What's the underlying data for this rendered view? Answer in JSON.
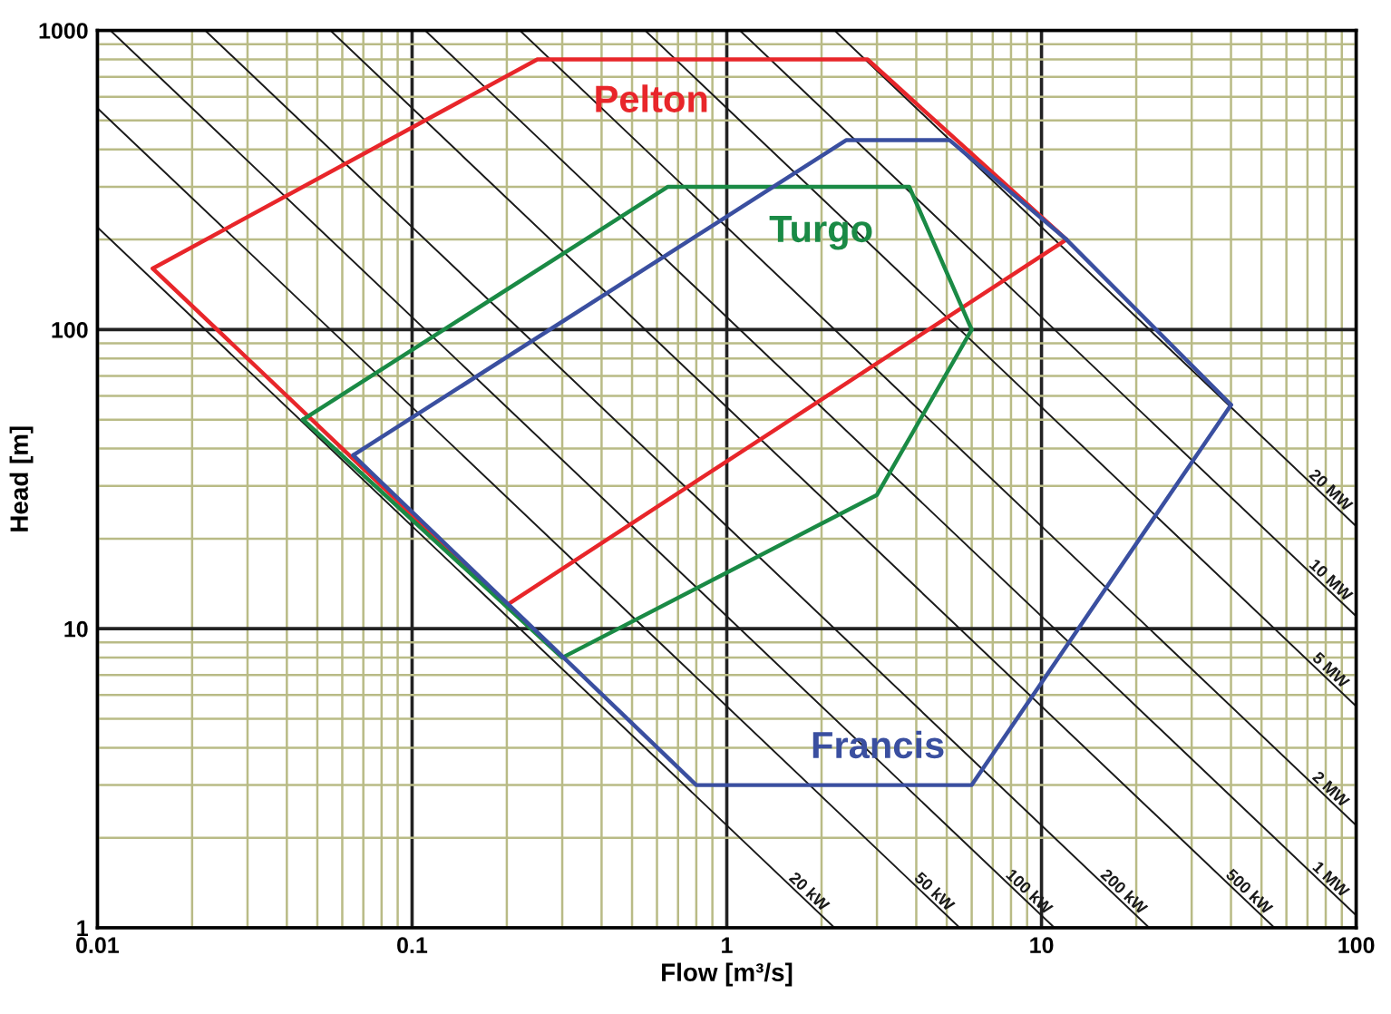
{
  "chart_data": {
    "type": "line",
    "xlabel": "Flow [m³/s]",
    "ylabel": "Head [m]",
    "log": "xy",
    "grid": true,
    "legend": false,
    "xlim": [
      0.01,
      100
    ],
    "ylim": [
      1,
      1000
    ],
    "xticks": [
      0.01,
      {
        "value": 0.02,
        "label": null
      },
      {
        "value": 0.03,
        "label": null
      },
      {
        "value": 0.04,
        "label": null
      },
      {
        "value": 0.05,
        "label": null
      },
      {
        "value": 0.06,
        "label": null
      },
      {
        "value": 0.07,
        "label": null
      },
      {
        "value": 0.08,
        "label": null
      },
      {
        "value": 0.09,
        "label": null
      },
      0.1,
      {
        "value": 0.2,
        "label": null
      },
      {
        "value": 0.3,
        "label": null
      },
      {
        "value": 0.4,
        "label": null
      },
      {
        "value": 0.5,
        "label": null
      },
      {
        "value": 0.6,
        "label": null
      },
      {
        "value": 0.7,
        "label": null
      },
      {
        "value": 0.8,
        "label": null
      },
      {
        "value": 0.9,
        "label": null
      },
      1,
      {
        "value": 2,
        "label": null
      },
      {
        "value": 3,
        "label": null
      },
      {
        "value": 4,
        "label": null
      },
      {
        "value": 5,
        "label": null
      },
      {
        "value": 6,
        "label": null
      },
      {
        "value": 7,
        "label": null
      },
      {
        "value": 8,
        "label": null
      },
      {
        "value": 9,
        "label": null
      },
      10,
      {
        "value": 20,
        "label": null
      },
      {
        "value": 30,
        "label": null
      },
      {
        "value": 40,
        "label": null
      },
      {
        "value": 50,
        "label": null
      },
      {
        "value": 60,
        "label": null
      },
      {
        "value": 70,
        "label": null
      },
      {
        "value": 80,
        "label": null
      },
      {
        "value": 90,
        "label": null
      },
      100
    ],
    "yticks": [
      1,
      {
        "value": 2,
        "label": null
      },
      {
        "value": 3,
        "label": null
      },
      {
        "value": 4,
        "label": null
      },
      {
        "value": 5,
        "label": null
      },
      {
        "value": 6,
        "label": null
      },
      {
        "value": 7,
        "label": null
      },
      {
        "value": 8,
        "label": null
      },
      {
        "value": 9,
        "label": null
      },
      10,
      {
        "value": 20,
        "label": null
      },
      {
        "value": 30,
        "label": null
      },
      {
        "value": 40,
        "label": null
      },
      {
        "value": 50,
        "label": null
      },
      {
        "value": 60,
        "label": null
      },
      {
        "value": 70,
        "label": null
      },
      {
        "value": 80,
        "label": null
      },
      {
        "value": 90,
        "label": null
      },
      100,
      {
        "value": 200,
        "label": null
      },
      {
        "value": 300,
        "label": null
      },
      {
        "value": 400,
        "label": null
      },
      {
        "value": 500,
        "label": null
      },
      {
        "value": 600,
        "label": null
      },
      {
        "value": 700,
        "label": null
      },
      {
        "value": 800,
        "label": null
      },
      {
        "value": 900,
        "label": null
      },
      1000
    ],
    "series": [
      {
        "name": "20 kW",
        "color": "#1a1a1a",
        "x": [
          0.01,
          2.2
        ],
        "values": [
          220,
          1
        ]
      },
      {
        "name": "50 kW",
        "color": "#1a1a1a",
        "x": [
          0.01,
          5.5
        ],
        "values": [
          550,
          1
        ]
      },
      {
        "name": "100 kW",
        "color": "#1a1a1a",
        "x": [
          0.011,
          11
        ],
        "values": [
          1000,
          1
        ]
      },
      {
        "name": "200 kW",
        "color": "#1a1a1a",
        "x": [
          0.022,
          22
        ],
        "values": [
          1000,
          1
        ]
      },
      {
        "name": "500 kW",
        "color": "#1a1a1a",
        "x": [
          0.055,
          55
        ],
        "values": [
          1000,
          1
        ]
      },
      {
        "name": "1 MW",
        "color": "#1a1a1a",
        "x": [
          0.11,
          100
        ],
        "values": [
          1000,
          1.1
        ]
      },
      {
        "name": "2 MW",
        "color": "#1a1a1a",
        "x": [
          0.22,
          100
        ],
        "values": [
          1000,
          2.2
        ]
      },
      {
        "name": "5 MW",
        "color": "#1a1a1a",
        "x": [
          0.55,
          100
        ],
        "values": [
          1000,
          5.5
        ]
      },
      {
        "name": "10 MW",
        "color": "#1a1a1a",
        "x": [
          1.1,
          100
        ],
        "values": [
          1000,
          11
        ]
      },
      {
        "name": "20 MW",
        "color": "#1a1a1a",
        "x": [
          2.2,
          100
        ],
        "values": [
          1000,
          22
        ]
      },
      {
        "name": "Pelton",
        "color": "#e8262a",
        "x": [
          0.015,
          0.25,
          2.8,
          12
        ],
        "values": [
          160,
          800,
          800,
          200
        ]
      },
      {
        "color": "#e8262a",
        "x": [
          0.015,
          0.2,
          12
        ],
        "values": [
          160,
          12,
          200
        ]
      },
      {
        "name": "Turgo",
        "color": "#1a8a45",
        "x": [
          0.045,
          0.65,
          3.8,
          6
        ],
        "values": [
          50,
          300,
          300,
          100
        ]
      },
      {
        "color": "#1a8a45",
        "x": [
          0.045,
          0.3,
          3,
          6
        ],
        "values": [
          50,
          8,
          28,
          100
        ]
      },
      {
        "name": "Francis",
        "color": "#3a4fa0",
        "x": [
          0.065,
          2.4,
          5.1,
          12,
          40
        ],
        "values": [
          38,
          430,
          430,
          200,
          56
        ]
      },
      {
        "color": "#3a4fa0",
        "x": [
          0.065,
          0.8,
          6,
          40
        ],
        "values": [
          38,
          3,
          3,
          56
        ]
      }
    ]
  }
}
